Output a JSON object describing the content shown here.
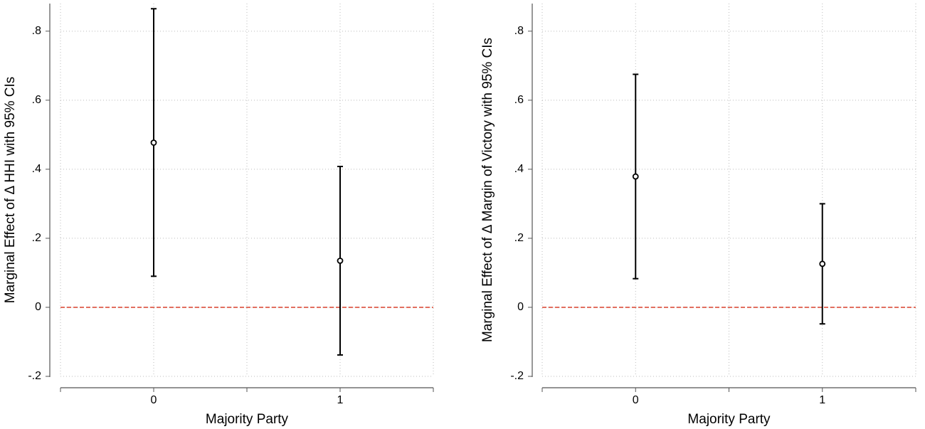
{
  "chart_data": [
    {
      "type": "errorbar",
      "y_label": "Marginal Effect of Δ HHI with 95% CIs",
      "x_label": "Majority Party",
      "x": [
        0,
        1
      ],
      "values": [
        0.477,
        0.135
      ],
      "lower": [
        0.09,
        -0.138
      ],
      "upper": [
        0.865,
        0.408
      ],
      "color": "#000000",
      "xlim": [
        -0.5,
        1.5
      ],
      "xticks": [
        0,
        1
      ],
      "minor_xticks": [
        -0.5,
        0,
        0.5,
        1,
        1.5
      ],
      "ylim": [
        -0.2,
        0.88
      ],
      "yticks": [
        {
          "value": -0.2,
          "label": "-.2"
        },
        0,
        {
          "value": 0.2,
          "label": ".2"
        },
        {
          "value": 0.4,
          "label": ".4"
        },
        {
          "value": 0.6,
          "label": ".6"
        },
        {
          "value": 0.8,
          "label": ".8"
        }
      ],
      "grid": true,
      "reference_line": 0,
      "reference_color": "#d9402b"
    },
    {
      "type": "errorbar",
      "y_label": "Marginal Effect of Δ Margin of Victory with 95% CIs",
      "x_label": "Majority Party",
      "x": [
        0,
        1
      ],
      "values": [
        0.379,
        0.126
      ],
      "lower": [
        0.083,
        -0.048
      ],
      "upper": [
        0.675,
        0.3
      ],
      "color": "#000000",
      "xlim": [
        -0.5,
        1.5
      ],
      "xticks": [
        0,
        1
      ],
      "minor_xticks": [
        -0.5,
        0,
        0.5,
        1,
        1.5
      ],
      "ylim": [
        -0.2,
        0.88
      ],
      "yticks": [
        {
          "value": -0.2,
          "label": "-.2"
        },
        0,
        {
          "value": 0.2,
          "label": ".2"
        },
        {
          "value": 0.4,
          "label": ".4"
        },
        {
          "value": 0.6,
          "label": ".6"
        },
        {
          "value": 0.8,
          "label": ".8"
        }
      ],
      "grid": true,
      "reference_line": 0,
      "reference_color": "#d9402b"
    }
  ]
}
